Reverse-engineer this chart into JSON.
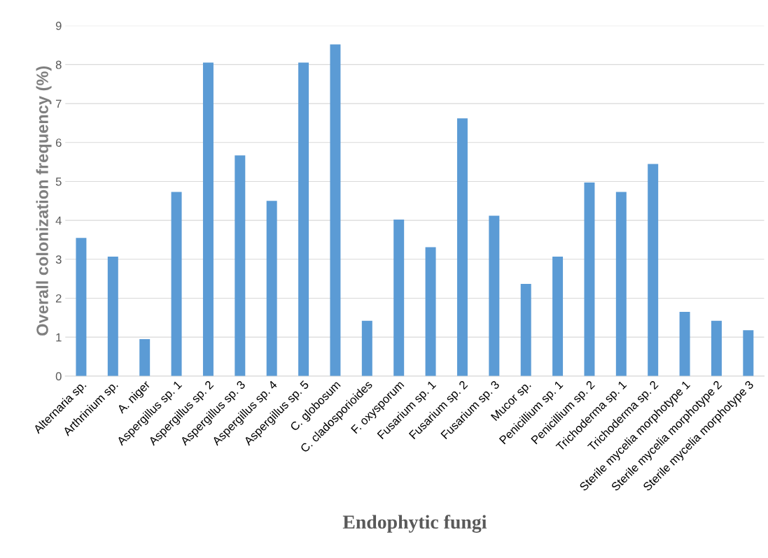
{
  "chart_data": {
    "type": "bar",
    "xlabel": "Endophytic fungi",
    "ylabel": "Overall colonization frequency (%)",
    "categories": [
      "Alternaria sp.",
      "Arthrinium sp.",
      "A. niger",
      "Aspergillus sp. 1",
      "Aspergillus sp. 2",
      "Aspergillus sp. 3",
      "Aspergillus sp. 4",
      "Aspergillus sp. 5",
      "C. globosum",
      "C. cladosporioides",
      "F. oxysporum",
      "Fusarium sp. 1",
      "Fusarium sp. 2",
      "Fusarium sp. 3",
      "Mucor sp.",
      "Penicillium sp. 1",
      "Penicillium sp. 2",
      "Trichoderma sp. 1",
      "Trichoderma sp. 2",
      "Sterile mycelia morphotype 1",
      "Sterile mycelia morphotype 2",
      "Sterile mycelia morphotype 3"
    ],
    "values": [
      3.55,
      3.07,
      0.95,
      4.73,
      8.05,
      5.67,
      4.5,
      8.05,
      8.52,
      1.42,
      4.02,
      3.31,
      6.62,
      4.12,
      2.37,
      3.07,
      4.97,
      4.73,
      5.45,
      1.65,
      1.42,
      1.18
    ],
    "color": "#5b9bd5",
    "ylim": [
      0,
      9
    ],
    "yticks": [
      0,
      1,
      2,
      3,
      4,
      5,
      6,
      7,
      8,
      9
    ],
    "grid": "y"
  }
}
